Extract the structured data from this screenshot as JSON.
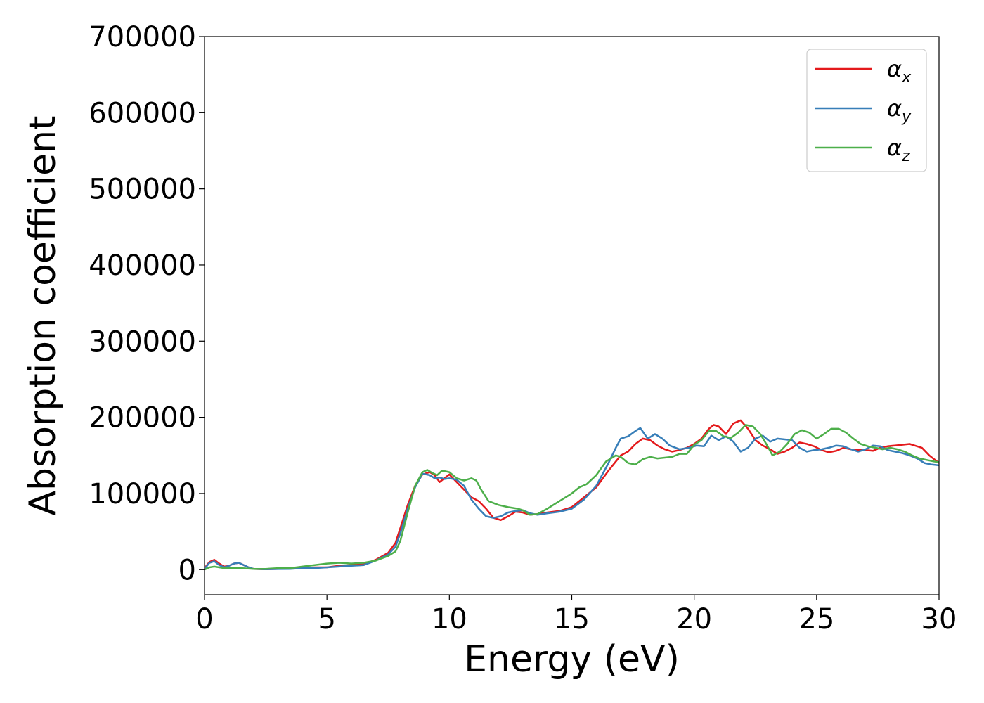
{
  "chart_data": {
    "type": "line",
    "xlabel": "Energy (eV)",
    "ylabel": "Absorption coefficient",
    "xlim": [
      0,
      30
    ],
    "ylim": [
      -33000,
      700000
    ],
    "xticks": [
      0,
      5,
      10,
      15,
      20,
      25,
      30
    ],
    "xtick_labels": [
      "0",
      "5",
      "10",
      "15",
      "20",
      "25",
      "30"
    ],
    "yticks": [
      0,
      100000,
      200000,
      300000,
      400000,
      500000,
      600000,
      700000
    ],
    "ytick_labels": [
      "0",
      "100000",
      "200000",
      "300000",
      "400000",
      "500000",
      "600000",
      "700000"
    ],
    "grid": false,
    "legend_position": "top-right",
    "series": [
      {
        "name": "α",
        "subscript": "x",
        "color": "#e41a1c",
        "x": [
          0,
          0.2,
          0.4,
          0.6,
          0.8,
          1.0,
          1.2,
          1.4,
          1.6,
          1.8,
          2.0,
          2.5,
          3.0,
          3.5,
          4.0,
          4.5,
          5.0,
          5.5,
          6.0,
          6.5,
          7.0,
          7.5,
          7.8,
          8.0,
          8.3,
          8.6,
          8.9,
          9.2,
          9.4,
          9.6,
          9.8,
          10.0,
          10.3,
          10.6,
          10.9,
          11.2,
          11.5,
          11.8,
          12.1,
          12.4,
          12.7,
          13.0,
          13.3,
          13.6,
          14.0,
          14.5,
          15.0,
          15.5,
          16.0,
          16.5,
          17.0,
          17.3,
          17.6,
          17.9,
          18.2,
          18.5,
          18.8,
          19.1,
          19.4,
          19.7,
          20.0,
          20.3,
          20.6,
          20.8,
          21.0,
          21.3,
          21.6,
          21.9,
          22.2,
          22.5,
          22.8,
          23.1,
          23.4,
          23.7,
          24.0,
          24.3,
          24.6,
          24.9,
          25.2,
          25.5,
          25.8,
          26.1,
          26.4,
          26.7,
          27.0,
          27.3,
          27.6,
          27.9,
          28.2,
          28.5,
          28.8,
          29.0,
          29.3,
          29.6,
          30.0
        ],
        "y": [
          2000,
          10000,
          13000,
          8000,
          4000,
          5000,
          8000,
          9000,
          6000,
          3000,
          1000,
          500,
          1000,
          2000,
          2000,
          3000,
          3000,
          5000,
          6000,
          7000,
          13000,
          22000,
          35000,
          55000,
          85000,
          110000,
          125000,
          128000,
          124000,
          115000,
          120000,
          125000,
          115000,
          105000,
          95000,
          90000,
          80000,
          68000,
          65000,
          70000,
          76000,
          75000,
          72000,
          73000,
          75000,
          77000,
          82000,
          95000,
          108000,
          130000,
          150000,
          155000,
          165000,
          172000,
          170000,
          163000,
          158000,
          155000,
          157000,
          160000,
          165000,
          172000,
          185000,
          190000,
          188000,
          178000,
          192000,
          196000,
          185000,
          170000,
          163000,
          158000,
          152000,
          155000,
          160000,
          167000,
          165000,
          162000,
          157000,
          154000,
          156000,
          160000,
          158000,
          157000,
          157000,
          156000,
          160000,
          162000,
          163000,
          164000,
          165000,
          163000,
          160000,
          150000,
          140000
        ]
      },
      {
        "name": "α",
        "subscript": "y",
        "color": "#377eb8",
        "x": [
          0,
          0.2,
          0.4,
          0.6,
          0.8,
          1.0,
          1.2,
          1.4,
          1.6,
          1.8,
          2.0,
          2.5,
          3.0,
          3.5,
          4.0,
          4.5,
          5.0,
          5.5,
          6.0,
          6.5,
          7.0,
          7.5,
          7.8,
          8.0,
          8.3,
          8.6,
          8.9,
          9.2,
          9.4,
          9.6,
          9.8,
          10.0,
          10.3,
          10.6,
          10.9,
          11.2,
          11.5,
          11.8,
          12.1,
          12.4,
          12.7,
          13.0,
          13.3,
          13.6,
          14.0,
          14.5,
          15.0,
          15.5,
          16.0,
          16.5,
          16.8,
          17.0,
          17.3,
          17.6,
          17.8,
          18.1,
          18.4,
          18.7,
          19.0,
          19.4,
          19.8,
          20.1,
          20.4,
          20.7,
          21.0,
          21.3,
          21.6,
          21.9,
          22.2,
          22.5,
          22.8,
          23.1,
          23.4,
          23.7,
          24.0,
          24.3,
          24.6,
          24.9,
          25.2,
          25.5,
          25.8,
          26.1,
          26.4,
          26.7,
          27.0,
          27.3,
          27.6,
          27.9,
          28.2,
          28.5,
          28.8,
          29.1,
          29.4,
          29.7,
          30.0
        ],
        "y": [
          1000,
          9000,
          11000,
          6000,
          3000,
          5000,
          8000,
          9000,
          6000,
          3000,
          1000,
          500,
          800,
          1000,
          2000,
          2000,
          3000,
          4000,
          5000,
          6000,
          12000,
          20000,
          30000,
          48000,
          80000,
          108000,
          126000,
          124000,
          120000,
          121000,
          119000,
          120000,
          118000,
          110000,
          92000,
          80000,
          70000,
          68000,
          70000,
          75000,
          77000,
          78000,
          74000,
          72000,
          74000,
          76000,
          80000,
          92000,
          110000,
          140000,
          160000,
          172000,
          175000,
          182000,
          186000,
          172000,
          178000,
          172000,
          163000,
          158000,
          160000,
          163000,
          162000,
          176000,
          170000,
          175000,
          168000,
          155000,
          160000,
          172000,
          176000,
          168000,
          172000,
          171000,
          170000,
          160000,
          155000,
          157000,
          158000,
          160000,
          163000,
          162000,
          158000,
          155000,
          158000,
          163000,
          162000,
          157000,
          155000,
          153000,
          150000,
          146000,
          140000,
          138000,
          137000
        ]
      },
      {
        "name": "α",
        "subscript": "z",
        "color": "#4daf4a",
        "x": [
          0,
          0.2,
          0.4,
          0.6,
          0.8,
          1.0,
          1.5,
          2.0,
          2.5,
          3.0,
          3.5,
          4.0,
          4.5,
          5.0,
          5.5,
          6.0,
          6.5,
          7.0,
          7.5,
          7.8,
          8.0,
          8.3,
          8.6,
          8.9,
          9.1,
          9.3,
          9.5,
          9.7,
          10.0,
          10.3,
          10.6,
          10.9,
          11.1,
          11.3,
          11.6,
          12.0,
          12.4,
          12.8,
          13.0,
          13.3,
          13.6,
          14.0,
          14.3,
          14.6,
          15.0,
          15.3,
          15.6,
          16.0,
          16.4,
          16.8,
          17.0,
          17.3,
          17.6,
          17.9,
          18.2,
          18.5,
          18.8,
          19.1,
          19.4,
          19.7,
          20.0,
          20.3,
          20.6,
          20.9,
          21.2,
          21.5,
          21.8,
          22.1,
          22.4,
          22.7,
          23.0,
          23.2,
          23.5,
          23.8,
          24.1,
          24.4,
          24.7,
          25.0,
          25.3,
          25.6,
          25.9,
          26.2,
          26.5,
          26.8,
          27.1,
          27.4,
          27.7,
          28.0,
          28.3,
          28.6,
          28.9,
          29.2,
          29.5,
          29.8,
          30.0
        ],
        "y": [
          0,
          3000,
          4000,
          3000,
          2000,
          2000,
          2000,
          1000,
          1000,
          2000,
          2000,
          4000,
          6000,
          8000,
          9000,
          8000,
          9000,
          12000,
          18000,
          24000,
          38000,
          75000,
          110000,
          128000,
          131000,
          127000,
          124000,
          130000,
          128000,
          120000,
          117000,
          120000,
          117000,
          105000,
          90000,
          85000,
          82000,
          80000,
          78000,
          72000,
          73000,
          80000,
          86000,
          92000,
          100000,
          108000,
          112000,
          124000,
          142000,
          150000,
          148000,
          140000,
          138000,
          145000,
          148000,
          146000,
          147000,
          148000,
          152000,
          152000,
          164000,
          170000,
          182000,
          182000,
          175000,
          173000,
          180000,
          190000,
          188000,
          178000,
          162000,
          150000,
          155000,
          165000,
          178000,
          183000,
          180000,
          172000,
          178000,
          185000,
          185000,
          180000,
          172000,
          165000,
          162000,
          160000,
          158000,
          160000,
          158000,
          155000,
          150000,
          146000,
          144000,
          142000,
          141000
        ]
      }
    ]
  }
}
